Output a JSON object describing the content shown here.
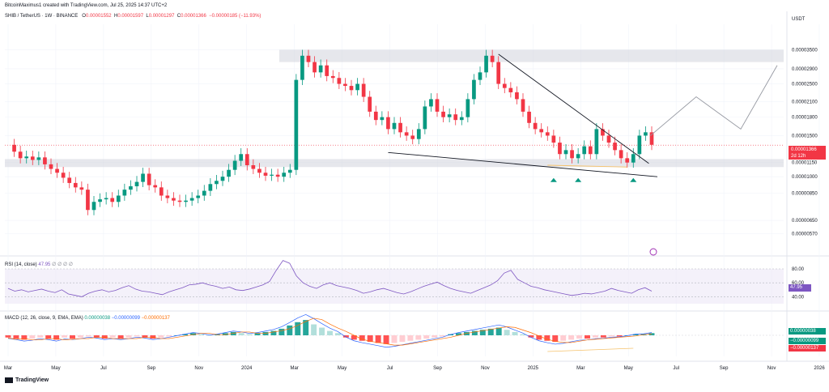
{
  "header": {
    "attribution": "BitcoinMaximus1 created with TradingView.com, Jul 25, 2025 14:37 UTC+2",
    "symbol": "SHIB / TetherUS · 1W · BINANCE",
    "o_label": "O",
    "o_value": "0.00001552",
    "h_label": "H",
    "h_value": "0.00001597",
    "l_label": "L",
    "l_value": "0.00001297",
    "c_label": "C",
    "c_value": "0.00001366",
    "change": "−0.00000185 (−11.93%)",
    "currency": "USDT"
  },
  "price_badge": {
    "value": "0.00001366",
    "countdown": "2d 12h",
    "color": "#f23645"
  },
  "rsi": {
    "label": "RSI (14, close)",
    "value_label": "47.95",
    "extras": "∅ ∅ ∅ ∅"
  },
  "macd": {
    "label": "MACD (12, 26, close, 9, EMA, EMA)",
    "v1": "0.00000038",
    "v2": "−0.00000099",
    "v3": "−0.00000137"
  },
  "macd_badges": [
    {
      "text": "0.00000038",
      "color": "#089981"
    },
    {
      "text": "−0.00000099",
      "color": "#089981"
    },
    {
      "text": "−0.00000137",
      "color": "#f23645"
    }
  ],
  "branding": "TradingView",
  "colors": {
    "up": "#089981",
    "down": "#f23645",
    "grid": "#f0f3fa",
    "rsi_line": "#7e57c2",
    "rsi_band": "#ede7f6",
    "macd_line": "#2962ff",
    "signal_line": "#ff6d00",
    "trend": "#131722",
    "zone": "#d1d4dc",
    "projection": "#9598a1"
  },
  "chart_data": {
    "type": "candlestick",
    "title": "SHIB / TetherUS · 1W · BINANCE",
    "y_ticks": [
      "0.00003500",
      "0.00002900",
      "0.00002500",
      "0.00002100",
      "0.00001800",
      "0.00001500",
      "0.00001150",
      "0.00001000",
      "0.00000850",
      "0.00000650",
      "0.00000570"
    ],
    "x_ticks": [
      "Mar",
      "May",
      "Jul",
      "Sep",
      "Nov",
      "2024",
      "Mar",
      "May",
      "Jul",
      "Sep",
      "Nov",
      "2025",
      "Mar",
      "May",
      "Jul",
      "Sep",
      "Nov",
      "2026"
    ],
    "price_range": [
      4.8e-06,
      4.5e-05
    ],
    "candles": [
      1.37e-05,
      1.28e-05,
      1.2e-05,
      1.22e-05,
      1.18e-05,
      1.21e-05,
      1.13e-05,
      1.08e-05,
      1.04e-05,
      9.9e-06,
      9.4e-06,
      9e-06,
      8.8e-06,
      7.2e-06,
      7.8e-06,
      8e-06,
      8.1e-06,
      7.8e-06,
      8.3e-06,
      8.8e-06,
      9.1e-06,
      9.5e-06,
      1.03e-05,
      9.2e-06,
      9e-06,
      8.3e-06,
      8.1e-06,
      7.9e-06,
      7.8e-06,
      7.9e-06,
      8.1e-06,
      8.3e-06,
      8.7e-06,
      9.3e-06,
      9.6e-06,
      1e-05,
      1.07e-05,
      1.17e-05,
      1.25e-05,
      1.12e-05,
      1.08e-05,
      1.04e-05,
      1.01e-05,
      1.02e-05,
      1e-05,
      1.04e-05,
      1.07e-05,
      2.6e-05,
      3.3e-05,
      3.1e-05,
      2.8e-05,
      3e-05,
      2.7e-05,
      2.65e-05,
      2.5e-05,
      2.45e-05,
      2.35e-05,
      2.5e-05,
      2.2e-05,
      1.9e-05,
      1.75e-05,
      1.8e-05,
      1.6e-05,
      1.7e-05,
      1.55e-05,
      1.5e-05,
      1.45e-05,
      1.6e-05,
      2e-05,
      2.15e-05,
      1.9e-05,
      1.8e-05,
      1.85e-05,
      1.75e-05,
      1.8e-05,
      2.15e-05,
      2.6e-05,
      2.8e-05,
      3.3e-05,
      3.1e-05,
      2.5e-05,
      2.4e-05,
      2.3e-05,
      2.15e-05,
      1.9e-05,
      1.7e-05,
      1.6e-05,
      1.55e-05,
      1.5e-05,
      1.4e-05,
      1.25e-05,
      1.3e-05,
      1.2e-05,
      1.25e-05,
      1.35e-05,
      1.25e-05,
      1.6e-05,
      1.5e-05,
      1.4e-05,
      1.3e-05,
      1.2e-05,
      1.15e-05,
      1.25e-05,
      1.5e-05,
      1.55e-05,
      1.37e-05
    ],
    "resistance_zone": [
      3.1e-05,
      3.5e-05
    ],
    "support_zone": [
      1.1e-05,
      1.19e-05
    ],
    "current_price": 1.366e-05,
    "rsi_values": [
      52,
      48,
      50,
      47,
      49,
      51,
      48,
      46,
      50,
      44,
      42,
      40,
      45,
      48,
      50,
      47,
      49,
      53,
      56,
      51,
      48,
      47,
      45,
      43,
      47,
      50,
      53,
      57,
      58,
      60,
      57,
      55,
      52,
      54,
      50,
      49,
      51,
      54,
      57,
      62,
      78,
      92,
      88,
      70,
      60,
      55,
      52,
      57,
      60,
      56,
      54,
      52,
      49,
      45,
      47,
      50,
      52,
      49,
      46,
      44,
      47,
      51,
      55,
      58,
      61,
      56,
      52,
      49,
      47,
      45,
      49,
      53,
      57,
      63,
      74,
      78,
      65,
      60,
      55,
      53,
      50,
      48,
      46,
      44,
      42,
      43,
      45,
      44,
      46,
      48,
      52,
      49,
      47,
      45,
      50,
      53,
      48
    ],
    "rsi_levels": [
      80,
      60,
      40
    ],
    "macd_hist": [
      -2,
      -3,
      -4,
      -3,
      -2,
      -3,
      -4,
      -2,
      -3,
      -2,
      -1,
      -2,
      -3,
      -2,
      -3,
      -2,
      -1,
      -2,
      -3,
      -2,
      -1,
      0,
      1,
      2,
      1,
      0,
      1,
      2,
      3,
      2,
      1,
      2,
      3,
      4,
      6,
      9,
      12,
      14,
      10,
      7,
      4,
      2,
      -2,
      -4,
      -5,
      -6,
      -7,
      -8,
      -7,
      -6,
      -5,
      -4,
      -3,
      -2,
      -1,
      1,
      2,
      3,
      4,
      5,
      6,
      7,
      5,
      3,
      1,
      -2,
      -4,
      -5,
      -6,
      -5,
      -4,
      -3,
      -3,
      -2,
      -2,
      -1,
      -1,
      0,
      1,
      1,
      2
    ],
    "annotations": [
      {
        "type": "descending_trendline",
        "from_value": 3.3e-05,
        "to_value": 1.15e-05
      },
      {
        "type": "lower_trendline",
        "from_value": 1.25e-05,
        "to_value": 1e-05
      },
      {
        "type": "projection_path",
        "values": [
          1.5e-05,
          2.2e-05,
          1.6e-05,
          3e-05
        ]
      },
      {
        "type": "triangle_markers",
        "count": 3
      }
    ]
  }
}
